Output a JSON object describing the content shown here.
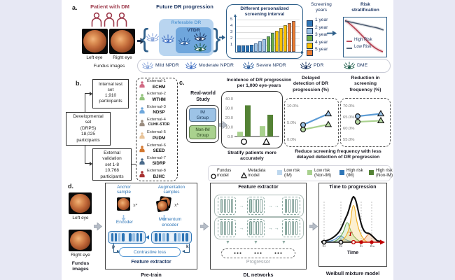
{
  "colors": {
    "background": "#e7e8f4",
    "paper": "#ffffff",
    "navy": "#1f3864",
    "blue": "#2e75b6",
    "maroon": "#9e3d4e",
    "referable_fill": "#b9d5f0",
    "vtdr_fill": "#6fa6dc",
    "high_risk_red": "#b3394a",
    "low_risk_gray": "#44546a",
    "im_fill": "#9dc3e6",
    "non_im_fill": "#a9d18e"
  },
  "panel_a": {
    "label": "a.",
    "patient_title": "Patient with DM",
    "left_eye": "Left eye",
    "right_eye": "Right eye",
    "fundus_caption": "Fundus images",
    "future_title": "Future DR progression",
    "referable_label": "Referable DR",
    "vtdr_label": "VTDR",
    "screening_years_label": "Screening\nyears",
    "risk_title": "Risk\nstratification",
    "severity_legend": [
      {
        "label": "Mild NPDR",
        "color": "#8ea9dc"
      },
      {
        "label": "Moderate NPDR",
        "color": "#4472c4"
      },
      {
        "label": "Severe NPDR",
        "color": "#2e5f9e"
      },
      {
        "label": "PDR",
        "color": "#1f3864"
      },
      {
        "label": "DME",
        "color": "#1d5c4a"
      }
    ]
  },
  "panel_b": {
    "label": "b.",
    "internal": "Internal test\nset\n1,910\nparticipants",
    "developmental": "Developmental\nset\n(DRPS)\n18,025\nparticipants",
    "external": "External\nvalidation\nset 1-8\n10,768\nparticipants",
    "externals": [
      {
        "id": "External-1",
        "name": "ECHM",
        "color": "#d16a84"
      },
      {
        "id": "External-2",
        "name": "WTHM",
        "color": "#93c47d"
      },
      {
        "id": "External-3",
        "name": "NDSP",
        "color": "#6fa8dc"
      },
      {
        "id": "External-4",
        "name": "CUHK-STDR",
        "color": "#9b8d80"
      },
      {
        "id": "External-5",
        "name": "PUDM",
        "color": "#e8c49a"
      },
      {
        "id": "External-6",
        "name": "SEED",
        "color": "#d2762e"
      },
      {
        "id": "External-7",
        "name": "SiDRP",
        "color": "#4a6a8a"
      },
      {
        "id": "External-8",
        "name": "BJHC",
        "color": "#a83232"
      }
    ]
  },
  "panel_c": {
    "label": "c.",
    "study_title": "Real-world\nStudy",
    "im_group": "IM\nGroup",
    "non_im_group": "Non-IM\nGroup",
    "caption_left": "Stratify patients more\naccurately",
    "caption_right": "Reduce screening frequency with less\ndelayed detection of DR progression",
    "legend": [
      {
        "label": "Fundus\nmodel",
        "type": "circle"
      },
      {
        "label": "Metadata\nmodel",
        "type": "triangle"
      },
      {
        "label": "Low risk\n(IM)",
        "type": "swatch",
        "color": "#bdd7ee"
      },
      {
        "label": "Low risk\n(Non-IM)",
        "type": "swatch",
        "color": "#a9d18e"
      },
      {
        "label": "High risk\n(IM)",
        "type": "swatch",
        "color": "#2e75b6"
      },
      {
        "label": "High risk\n(Non-IM)",
        "type": "swatch",
        "color": "#548235"
      }
    ]
  },
  "panel_d": {
    "label": "d.",
    "left_eye": "Left eye",
    "right_eye": "Right eye",
    "fundus_caption": "Fundus\nimages",
    "pretrain": {
      "anchor": "Anchor\nsample",
      "aug": "Augmentation\nsamples",
      "xp": "xᵖ",
      "xk": "xᵏ",
      "encoder": "Encoder",
      "momentum": "Momentum\nencoder",
      "p": "p",
      "k": "k",
      "loss": "Contrastive loss",
      "feature": "Feature extractor",
      "caption": "Pre-train"
    },
    "dl": {
      "title": "Feature extractor",
      "progressor": "Progressor",
      "caption": "DL networks"
    },
    "weibull": {
      "title": "Time to progression",
      "t_annotation": "T",
      "xlabel": "Time",
      "ticks": [
        "t₁",
        "t₂",
        "tᵢ",
        "tₜₙ"
      ],
      "caption": "Weibull mixture model"
    }
  },
  "chart_data": [
    {
      "id": "screening_interval",
      "type": "bar",
      "title": "Different personalized\nscreening interval",
      "yticks": [
        "5",
        "4",
        "3",
        "2",
        "1"
      ],
      "ylim": [
        0,
        5
      ],
      "values": [
        1,
        1,
        1,
        1.1,
        1.3,
        1.6,
        2,
        2.4,
        2.9,
        3.3,
        3.7,
        4.1,
        4.5,
        4.8
      ],
      "year_group": [
        1,
        1,
        1,
        1,
        2,
        2,
        2,
        3,
        3,
        4,
        4,
        4,
        5,
        5
      ],
      "group_colors": [
        "#2e75b6",
        "#9dc3e6",
        "#70ad47",
        "#ffc000",
        "#ed7d31"
      ],
      "legend_title": "Screening years",
      "legend": [
        "1 year",
        "2 year",
        "3 year",
        "4 year",
        "5 year"
      ]
    },
    {
      "id": "incidence",
      "type": "bar",
      "title": "Incidence of DR progression\nper 1,000 eye-years",
      "yticks": [
        "40.0",
        "30.0",
        "20.0",
        "10.0",
        "0.0"
      ],
      "ylim": [
        0,
        40
      ],
      "groups": [
        "Fundus model",
        "Metadata model"
      ],
      "series": [
        {
          "name": "Low risk (Non-IM)",
          "color": "#a9d18e",
          "values": [
            5,
            11
          ]
        },
        {
          "name": "High risk (Non-IM)",
          "color": "#548235",
          "values": [
            33,
            23
          ]
        }
      ],
      "caption": "Stratify patients more accurately"
    },
    {
      "id": "delayed_detection",
      "type": "line",
      "title": "Delayed\ndetection of DR\nprogression (%)",
      "yticks": [
        "10.0%",
        "5.0%",
        "0.0%"
      ],
      "ylim": [
        0,
        10
      ],
      "x": [
        "Fundus model",
        "Metadata model"
      ],
      "series": [
        {
          "name": "High risk (IM)",
          "color": "#5b9bd5",
          "marker_fill": "#9dc3e6",
          "values": [
            4.3,
            7.6
          ]
        },
        {
          "name": "Low risk (Non-IM)",
          "color": "#a9d18e",
          "marker_fill": "#b9dba4",
          "values": [
            2.9,
            4.4
          ]
        }
      ]
    },
    {
      "id": "screening_reduction",
      "type": "line",
      "title": "Reduction in\nscreening\nfrequency (%)",
      "yticks": [
        "70.0%",
        "65.0%",
        "60.0%",
        "55.0%"
      ],
      "ylim": [
        55,
        70
      ],
      "x": [
        "Fundus model",
        "Metadata model"
      ],
      "series": [
        {
          "name": "High risk (IM)",
          "color": "#5b9bd5",
          "marker_fill": "#9dc3e6",
          "values": [
            65.3,
            66.4
          ]
        },
        {
          "name": "Low risk (Non-IM)",
          "color": "#a9d18e",
          "marker_fill": "#b9dba4",
          "values": [
            62.8,
            63.3
          ]
        }
      ]
    },
    {
      "id": "risk_stratification",
      "type": "line",
      "title": "Risk stratification",
      "series": [
        {
          "name": "High Risk",
          "color": "#b3394a"
        },
        {
          "name": "Low Risk",
          "color": "#44546a"
        }
      ]
    }
  ]
}
